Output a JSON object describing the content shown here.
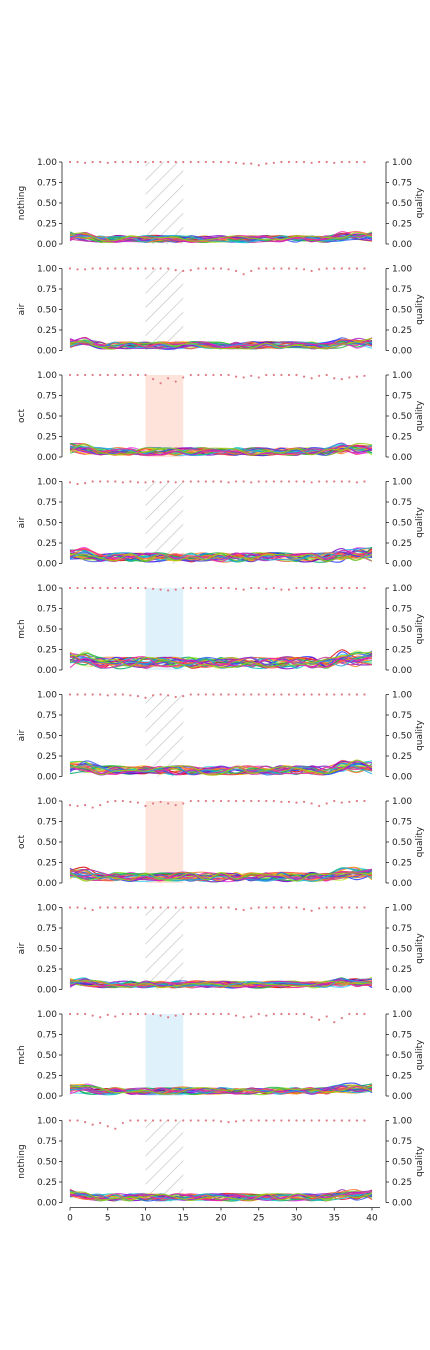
{
  "chart_data": {
    "type": "line",
    "x_range": [
      0,
      40
    ],
    "x_ticks": [
      0,
      5,
      10,
      15,
      20,
      25,
      30,
      35,
      40
    ],
    "x_tick_labels": [
      "0",
      "5",
      "10",
      "15",
      "20",
      "25",
      "30",
      "35",
      "40"
    ],
    "y_range": [
      0,
      1
    ],
    "y_ticks": [
      0,
      0.25,
      0.5,
      0.75,
      1.0
    ],
    "y_tick_labels": [
      "0.00",
      "0.25",
      "0.50",
      "0.75",
      "1.00"
    ],
    "right_ylabel": "quality",
    "highlight_window": [
      10,
      15
    ],
    "grid": false,
    "series_per_panel": 24,
    "colors": {
      "quality_dots": "#e07a86",
      "hatch": "#bdbdbd",
      "oct_fill": "#fde3da",
      "mch_fill": "#dff1fb"
    },
    "panels": [
      {
        "ylabel": "nothing",
        "window_style": "hatch",
        "max_signal": 0.15,
        "quality": [
          1,
          1,
          0.99,
          1,
          1,
          0.99,
          1,
          1,
          1,
          1,
          1,
          1,
          1,
          1,
          1,
          1,
          1,
          1,
          1,
          1,
          1,
          1,
          0.99,
          0.98,
          0.98,
          0.96,
          0.98,
          0.99,
          1,
          1,
          1,
          1,
          0.99,
          1,
          1,
          0.99,
          1,
          1,
          1,
          1
        ]
      },
      {
        "ylabel": "air",
        "window_style": "hatch",
        "max_signal": 0.16,
        "quality": [
          1,
          0.99,
          0.99,
          1,
          1,
          1,
          1,
          1,
          1,
          1,
          1,
          1,
          1,
          1,
          0.98,
          0.97,
          0.98,
          1,
          1,
          1,
          1,
          0.99,
          0.97,
          0.93,
          0.97,
          1,
          1,
          1,
          1,
          1,
          1,
          0.99,
          0.97,
          0.99,
          1,
          1,
          1,
          1,
          1,
          1
        ]
      },
      {
        "ylabel": "oct",
        "window_style": "oct",
        "max_signal": 0.17,
        "quality": [
          1,
          1,
          1,
          1,
          1,
          1,
          1,
          1,
          1,
          1,
          1,
          0.95,
          0.9,
          0.96,
          0.92,
          0.97,
          1,
          1,
          1,
          1,
          1,
          1,
          0.98,
          0.97,
          0.99,
          0.97,
          1,
          1,
          1,
          1,
          1,
          0.98,
          0.96,
          0.99,
          1,
          0.96,
          0.95,
          0.97,
          0.98,
          0.99
        ]
      },
      {
        "ylabel": "air",
        "window_style": "hatch",
        "max_signal": 0.2,
        "quality": [
          0.99,
          0.97,
          0.98,
          1,
          1,
          1,
          1,
          0.99,
          1,
          0.99,
          0.99,
          1,
          0.99,
          1,
          0.99,
          1,
          1,
          1,
          1,
          1,
          1,
          0.99,
          1,
          1,
          0.99,
          1,
          1,
          1,
          1,
          1,
          1,
          1,
          0.99,
          1,
          1,
          1,
          1,
          1,
          0.99,
          1
        ]
      },
      {
        "ylabel": "mch",
        "window_style": "mch",
        "max_signal": 0.25,
        "quality": [
          1,
          1,
          1,
          1,
          1,
          1,
          1,
          1,
          1,
          1,
          1,
          0.99,
          0.98,
          0.97,
          0.98,
          1,
          1,
          1,
          1,
          1,
          1,
          1,
          0.99,
          0.98,
          1,
          1,
          0.99,
          1,
          0.98,
          0.98,
          1,
          1,
          1,
          1,
          1,
          1,
          1,
          1,
          1,
          1
        ]
      },
      {
        "ylabel": "air",
        "window_style": "hatch",
        "max_signal": 0.2,
        "quality": [
          1,
          1,
          1,
          1,
          1,
          0.99,
          1,
          1,
          0.99,
          0.98,
          0.96,
          0.99,
          1,
          0.99,
          0.97,
          0.98,
          1,
          1,
          1,
          1,
          1,
          1,
          1,
          1,
          1,
          1,
          1,
          1,
          1,
          1,
          1,
          1,
          1,
          1,
          1,
          1,
          1,
          1,
          1,
          1
        ]
      },
      {
        "ylabel": "oct",
        "window_style": "oct",
        "max_signal": 0.2,
        "quality": [
          0.95,
          0.94,
          0.95,
          0.92,
          0.95,
          0.99,
          1,
          1,
          0.99,
          0.98,
          0.94,
          0.97,
          0.99,
          0.97,
          0.95,
          0.97,
          1,
          1,
          1,
          1,
          1,
          1,
          1,
          1,
          1,
          1,
          1,
          1,
          0.99,
          0.99,
          0.98,
          0.99,
          0.97,
          0.94,
          0.97,
          1,
          0.98,
          0.99,
          1,
          1
        ]
      },
      {
        "ylabel": "air",
        "window_style": "hatch",
        "max_signal": 0.15,
        "quality": [
          1,
          1,
          0.99,
          0.97,
          1,
          1,
          1,
          1,
          1,
          1,
          1,
          1,
          1,
          1,
          1,
          1,
          1,
          1,
          1,
          1,
          1,
          1,
          0.98,
          0.97,
          0.99,
          1,
          1,
          1,
          1,
          1,
          1,
          0.98,
          0.96,
          0.99,
          1,
          1,
          1,
          1,
          1,
          1
        ]
      },
      {
        "ylabel": "mch",
        "window_style": "mch",
        "max_signal": 0.15,
        "quality": [
          1,
          1,
          1,
          0.98,
          0.96,
          0.99,
          0.97,
          1,
          1,
          1,
          1,
          1,
          0.98,
          0.96,
          0.98,
          1,
          1,
          1,
          1,
          1,
          1,
          1,
          0.98,
          0.96,
          0.97,
          1,
          0.98,
          1,
          1,
          1,
          1,
          1,
          0.96,
          0.93,
          0.97,
          0.9,
          0.95,
          1,
          1,
          1
        ]
      },
      {
        "ylabel": "nothing",
        "window_style": "hatch",
        "max_signal": 0.16,
        "quality": [
          1,
          1,
          0.98,
          0.95,
          0.97,
          0.93,
          0.9,
          0.97,
          1,
          1,
          1,
          1,
          1,
          1,
          1,
          1,
          1,
          1,
          1,
          1,
          0.99,
          0.98,
          0.99,
          1,
          1,
          1,
          1,
          1,
          1,
          1,
          1,
          1,
          1,
          1,
          1,
          1,
          1,
          1,
          1,
          1
        ]
      }
    ]
  }
}
